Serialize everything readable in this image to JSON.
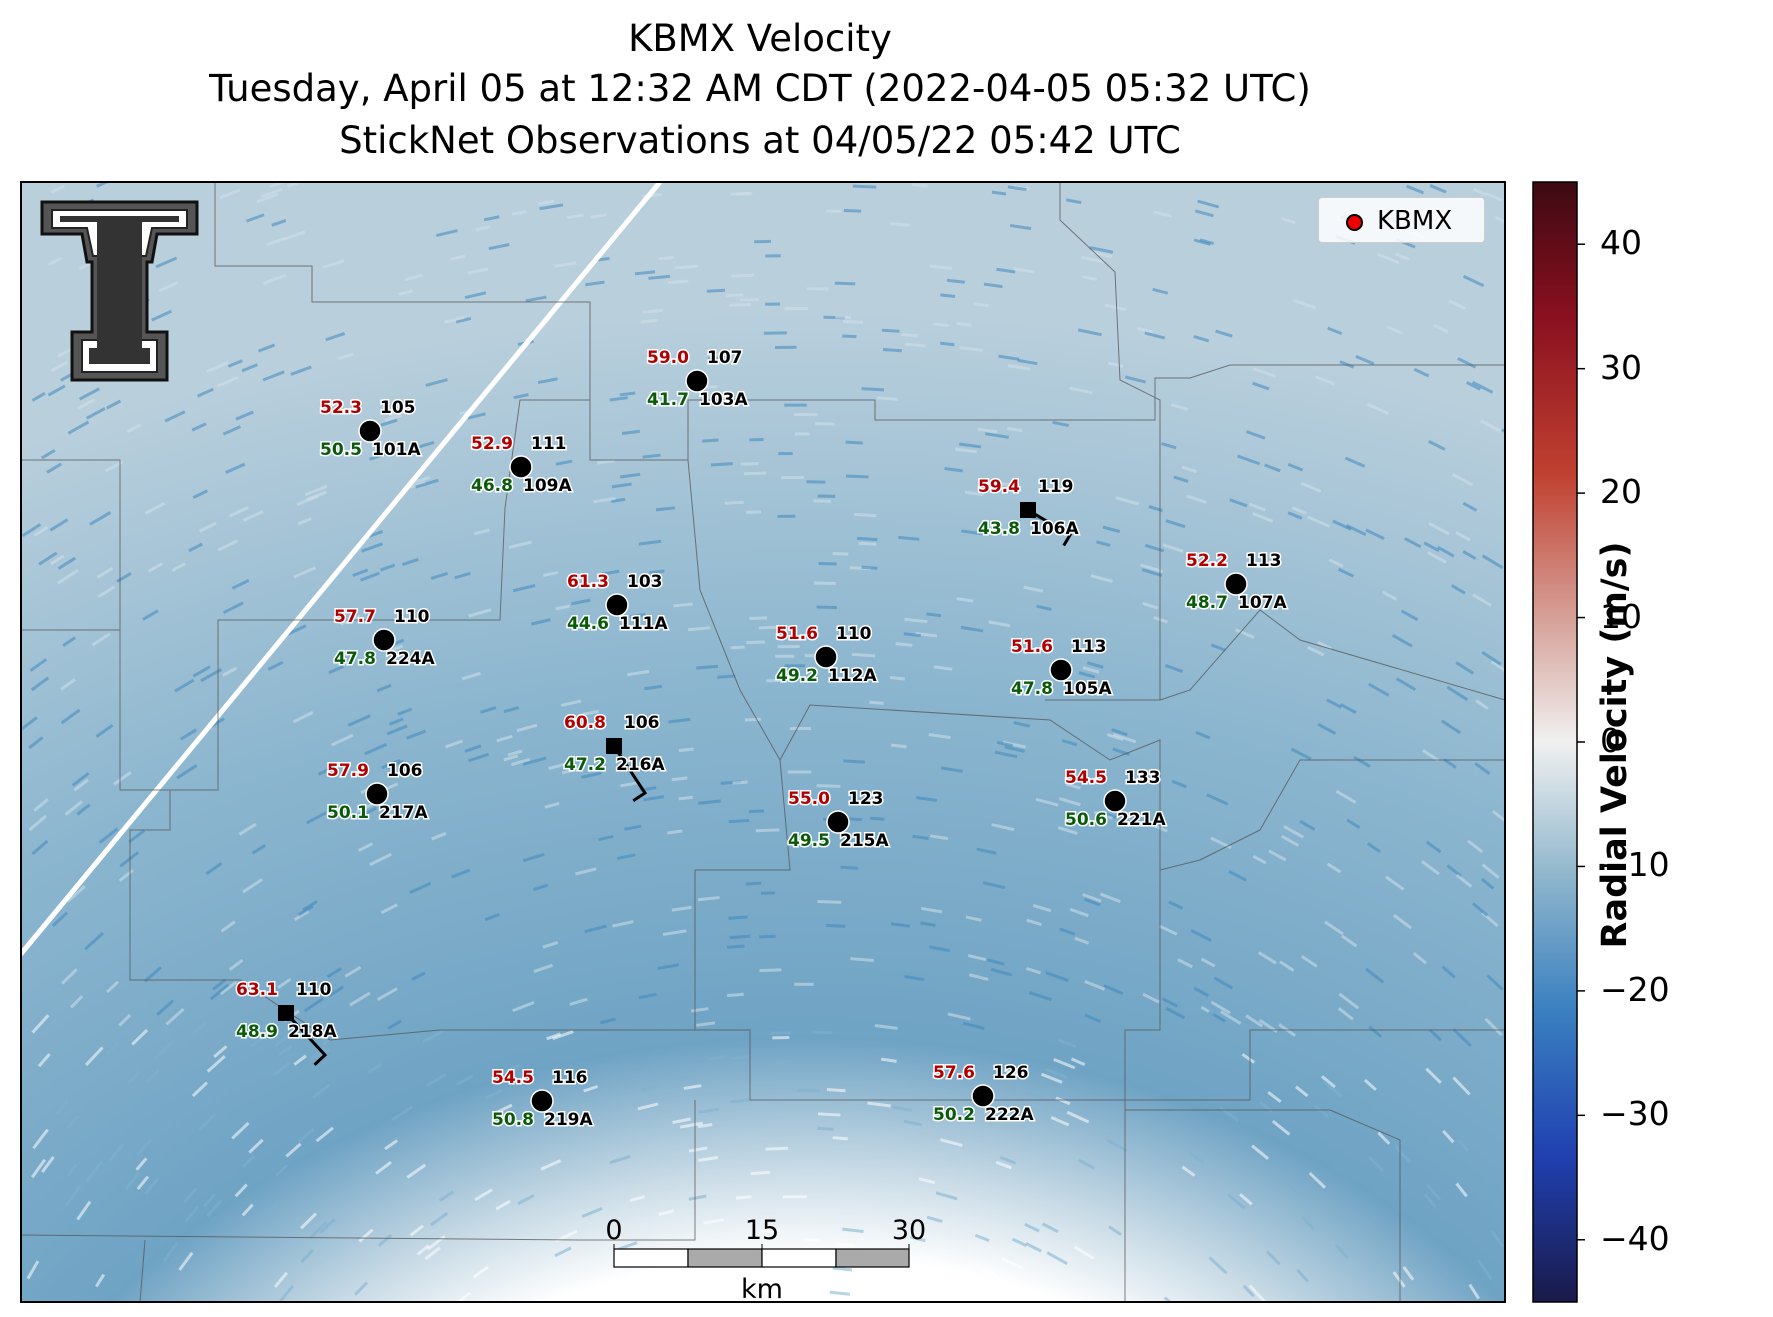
{
  "title": {
    "line1": "KBMX Velocity",
    "line2": "Tuesday, April 05 at 12:32 AM CDT (2022-04-05 05:32 UTC)",
    "line3": "StickNet Observations at 04/05/22 05:42 UTC"
  },
  "legend": {
    "label": "KBMX",
    "marker_color": "#e00000"
  },
  "colorbar": {
    "label": "Radial Velocity (m/s)",
    "ticks": [
      "40",
      "30",
      "20",
      "10",
      "0",
      "−10",
      "−20",
      "−30",
      "−40"
    ],
    "range": [
      -45,
      45
    ],
    "colors": [
      "#1a1a4a",
      "#2040b0",
      "#3a80c0",
      "#8fb6cc",
      "#f0f0f0",
      "#d8a8a0",
      "#c04030",
      "#8a1020",
      "#3d0a12"
    ]
  },
  "scale_bar": {
    "ticks": [
      "0",
      "15",
      "30"
    ],
    "unit": "km"
  },
  "logo": {
    "name": "Texas Tech double-T logo"
  },
  "stations": [
    {
      "id": "105",
      "code": "101A",
      "gust": "52.3",
      "wind": "50.5",
      "marker": "circle"
    },
    {
      "id": "107",
      "code": "103A",
      "gust": "59.0",
      "wind": "41.7",
      "marker": "circle"
    },
    {
      "id": "111",
      "code": "109A",
      "gust": "52.9",
      "wind": "46.8",
      "marker": "circle"
    },
    {
      "id": "119",
      "code": "106A",
      "gust": "59.4",
      "wind": "43.8",
      "marker": "square"
    },
    {
      "id": "113",
      "code": "107A",
      "gust": "52.2",
      "wind": "48.7",
      "marker": "circle"
    },
    {
      "id": "103",
      "code": "111A",
      "gust": "61.3",
      "wind": "44.6",
      "marker": "circle"
    },
    {
      "id": "110",
      "code": "224A",
      "gust": "57.7",
      "wind": "47.8",
      "marker": "circle"
    },
    {
      "id": "110",
      "code": "112A",
      "gust": "51.6",
      "wind": "49.2",
      "marker": "circle"
    },
    {
      "id": "113",
      "code": "105A",
      "gust": "51.6",
      "wind": "47.8",
      "marker": "circle"
    },
    {
      "id": "106",
      "code": "216A",
      "gust": "60.8",
      "wind": "47.2",
      "marker": "square"
    },
    {
      "id": "106",
      "code": "217A",
      "gust": "57.9",
      "wind": "50.1",
      "marker": "circle"
    },
    {
      "id": "123",
      "code": "215A",
      "gust": "55.0",
      "wind": "49.5",
      "marker": "circle"
    },
    {
      "id": "133",
      "code": "221A",
      "gust": "54.5",
      "wind": "50.6",
      "marker": "circle"
    },
    {
      "id": "110",
      "code": "218A",
      "gust": "63.1",
      "wind": "48.9",
      "marker": "square"
    },
    {
      "id": "116",
      "code": "219A",
      "gust": "54.5",
      "wind": "50.8",
      "marker": "circle"
    },
    {
      "id": "126",
      "code": "222A",
      "gust": "57.6",
      "wind": "50.2",
      "marker": "circle"
    }
  ]
}
